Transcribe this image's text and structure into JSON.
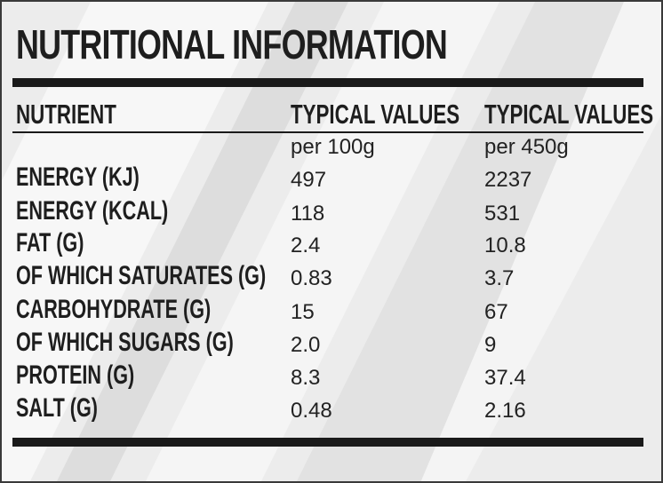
{
  "title": "NUTRITIONAL INFORMATION",
  "columns": {
    "nutrient": "NUTRIENT",
    "col1": "TYPICAL VALUES",
    "col2": "TYPICAL VALUES"
  },
  "units": {
    "col1": "per 100g",
    "col2": "per 450g"
  },
  "rows": [
    {
      "label": "ENERGY (KJ)",
      "per100": "497",
      "per450": "2237"
    },
    {
      "label": "ENERGY (KCAL)",
      "per100": "118",
      "per450": "531"
    },
    {
      "label": "FAT (G)",
      "per100": "2.4",
      "per450": "10.8"
    },
    {
      "label": "OF WHICH SATURATES (G)",
      "per100": "0.83",
      "per450": "3.7"
    },
    {
      "label": "CARBOHYDRATE (G)",
      "per100": "15",
      "per450": "67"
    },
    {
      "label": "OF WHICH SUGARS (G)",
      "per100": "2.0",
      "per450": "9"
    },
    {
      "label": "PROTEIN (G)",
      "per100": "8.3",
      "per450": "37.4"
    },
    {
      "label": "SALT (G)",
      "per100": "0.48",
      "per450": "2.16"
    }
  ]
}
